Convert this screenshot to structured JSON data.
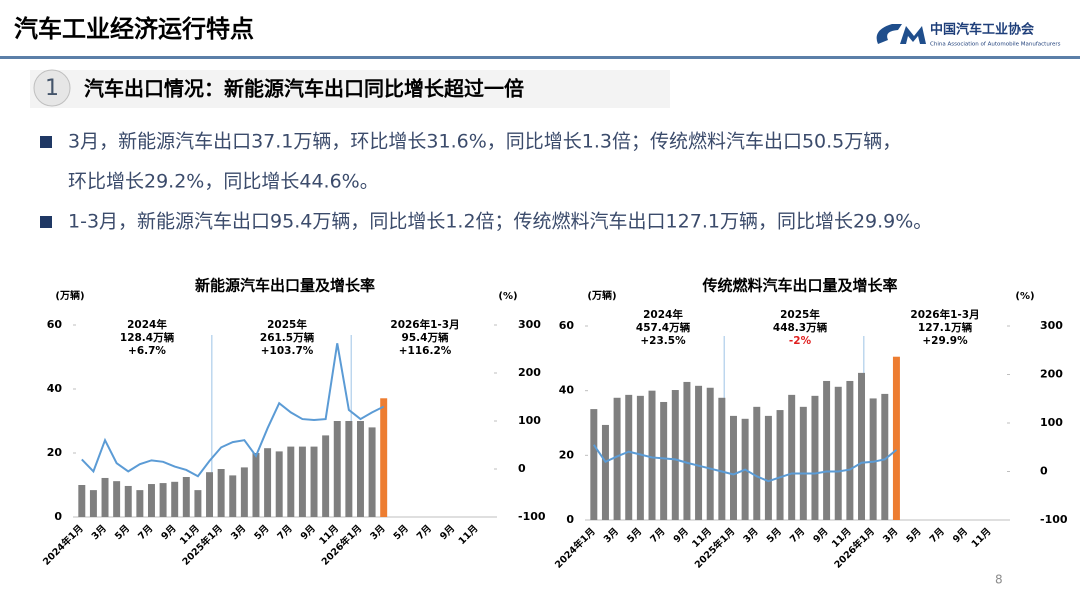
{
  "header": {
    "title": "汽车工业经济运行特点",
    "logo_cn": "中国汽车工业协会",
    "logo_en": "China Association of Automobile Manufacturers"
  },
  "section": {
    "number": "1",
    "heading": "汽车出口情况：新能源汽车出口同比增长超过一倍"
  },
  "bullets": [
    [
      "3月，新能源汽车出口37.1万辆，环比增长31.6%，同比增长1.3倍；传统燃料汽车出口50.5万辆，",
      "环比增长29.2%，同比增长44.6%。"
    ],
    [
      "1-3月，新能源汽车出口95.4万辆，同比增长1.2倍；传统燃料汽车出口127.1万辆，同比增长29.9%。"
    ]
  ],
  "page_number": "8",
  "chart_data": [
    {
      "type": "bar_line",
      "title": "新能源汽车出口量及增长率",
      "y_label": "(万辆)",
      "y2_label": "(%)",
      "categories": [
        "2024年1月",
        null,
        "3月",
        null,
        "5月",
        null,
        "7月",
        null,
        "9月",
        null,
        "11月",
        null,
        "2025年1月",
        null,
        "3月",
        null,
        "5月",
        null,
        "7月",
        null,
        "9月",
        null,
        "11月",
        null,
        "2026年1月",
        null,
        "3月",
        null,
        "5月",
        null,
        "7月",
        null,
        "9月",
        null,
        "11月",
        null
      ],
      "ylim": [
        0,
        60
      ],
      "yticks": [
        0,
        20,
        40,
        60
      ],
      "y2lim": [
        -100,
        300
      ],
      "y2ticks": [
        -100,
        0,
        100,
        200,
        300
      ],
      "series": [
        {
          "type": "bar",
          "colors": [
            "#7f7f7f",
            "#7f7f7f",
            "#7f7f7f",
            "#7f7f7f",
            "#7f7f7f",
            "#7f7f7f",
            "#7f7f7f",
            "#7f7f7f",
            "#7f7f7f",
            "#7f7f7f",
            "#7f7f7f",
            "#7f7f7f",
            "#7f7f7f",
            "#7f7f7f",
            "#7f7f7f",
            "#7f7f7f",
            "#7f7f7f",
            "#7f7f7f",
            "#7f7f7f",
            "#7f7f7f",
            "#7f7f7f",
            "#7f7f7f",
            "#7f7f7f",
            "#7f7f7f",
            "#7f7f7f",
            "#7f7f7f",
            "#ed7d31",
            null,
            null,
            null,
            null,
            null,
            null,
            null,
            null,
            null
          ],
          "values": [
            10,
            8.4,
            12.2,
            11.2,
            9.7,
            8.4,
            10.3,
            10.6,
            11,
            12.5,
            8.4,
            14,
            15,
            13,
            15.5,
            20,
            21.5,
            20.5,
            22,
            22,
            22,
            25.5,
            30,
            30,
            30,
            28,
            37.1,
            null,
            null,
            null,
            null,
            null,
            null,
            null,
            null,
            null
          ]
        },
        {
          "type": "line",
          "axis": "y2",
          "color": "#5b9bd5",
          "values": [
            20,
            -5,
            60,
            12,
            -5,
            10,
            18,
            15,
            5,
            -2,
            -15,
            17,
            45,
            56,
            60,
            27,
            85,
            137,
            118,
            104,
            102,
            104,
            262,
            123,
            104,
            118,
            130,
            null,
            null,
            null,
            null,
            null,
            null,
            null,
            null,
            null
          ]
        }
      ],
      "annotations": [
        {
          "lines": [
            "2024年",
            "128.4万辆",
            "+6.7%"
          ]
        },
        {
          "lines": [
            "2025年",
            "261.5万辆",
            "+103.7%"
          ]
        },
        {
          "lines": [
            "2026年1-3月",
            "95.4万辆",
            "+116.2%"
          ]
        }
      ]
    },
    {
      "type": "bar_line",
      "title": "传统燃料汽车出口量及增长率",
      "y_label": "(万辆)",
      "y2_label": "(%)",
      "categories": [
        "2024年1月",
        null,
        "3月",
        null,
        "5月",
        null,
        "7月",
        null,
        "9月",
        null,
        "11月",
        null,
        "2025年1月",
        null,
        "3月",
        null,
        "5月",
        null,
        "7月",
        null,
        "9月",
        null,
        "11月",
        null,
        "2026年1月",
        null,
        "3月",
        null,
        "5月",
        null,
        "7月",
        null,
        "9月",
        null,
        "11月",
        null
      ],
      "ylim": [
        0,
        60
      ],
      "yticks": [
        0,
        20,
        40,
        60
      ],
      "y2lim": [
        -100,
        300
      ],
      "y2ticks": [
        -100,
        0,
        100,
        200,
        300
      ],
      "series": [
        {
          "type": "bar",
          "colors": [
            "#7f7f7f",
            "#7f7f7f",
            "#7f7f7f",
            "#7f7f7f",
            "#7f7f7f",
            "#7f7f7f",
            "#7f7f7f",
            "#7f7f7f",
            "#7f7f7f",
            "#7f7f7f",
            "#7f7f7f",
            "#7f7f7f",
            "#7f7f7f",
            "#7f7f7f",
            "#7f7f7f",
            "#7f7f7f",
            "#7f7f7f",
            "#7f7f7f",
            "#7f7f7f",
            "#7f7f7f",
            "#7f7f7f",
            "#7f7f7f",
            "#7f7f7f",
            "#7f7f7f",
            "#7f7f7f",
            "#7f7f7f",
            "#ed7d31",
            null,
            null,
            null,
            null,
            null,
            null,
            null,
            null,
            null
          ],
          "values": [
            34.3,
            29.4,
            37.8,
            38.7,
            38.4,
            40,
            36.5,
            40.2,
            42.7,
            41.5,
            40.9,
            37.8,
            32.2,
            31.3,
            35,
            32.2,
            34,
            38.7,
            35,
            38.4,
            43,
            41.2,
            43,
            45.5,
            37.6,
            39,
            50.5,
            null,
            null,
            null,
            null,
            null,
            null,
            null,
            null,
            null
          ]
        },
        {
          "type": "line",
          "axis": "y2",
          "color": "#5b9bd5",
          "values": [
            55,
            20,
            31,
            41,
            35,
            29,
            27,
            25,
            18,
            12,
            6,
            0,
            -6,
            4,
            -10,
            -20,
            -12,
            -4,
            -4,
            -4,
            0,
            0,
            4,
            18,
            20,
            25,
            44.6,
            null,
            null,
            null,
            null,
            null,
            null,
            null,
            null,
            null
          ]
        }
      ],
      "annotations": [
        {
          "lines": [
            "2024年",
            "457.4万辆",
            "+23.5%"
          ]
        },
        {
          "lines": [
            "2025年",
            "448.3万辆",
            {
              "text": "-2%",
              "color": "#e02020"
            }
          ]
        },
        {
          "lines": [
            "2026年1-3月",
            "127.1万辆",
            "+29.9%"
          ]
        }
      ]
    }
  ]
}
